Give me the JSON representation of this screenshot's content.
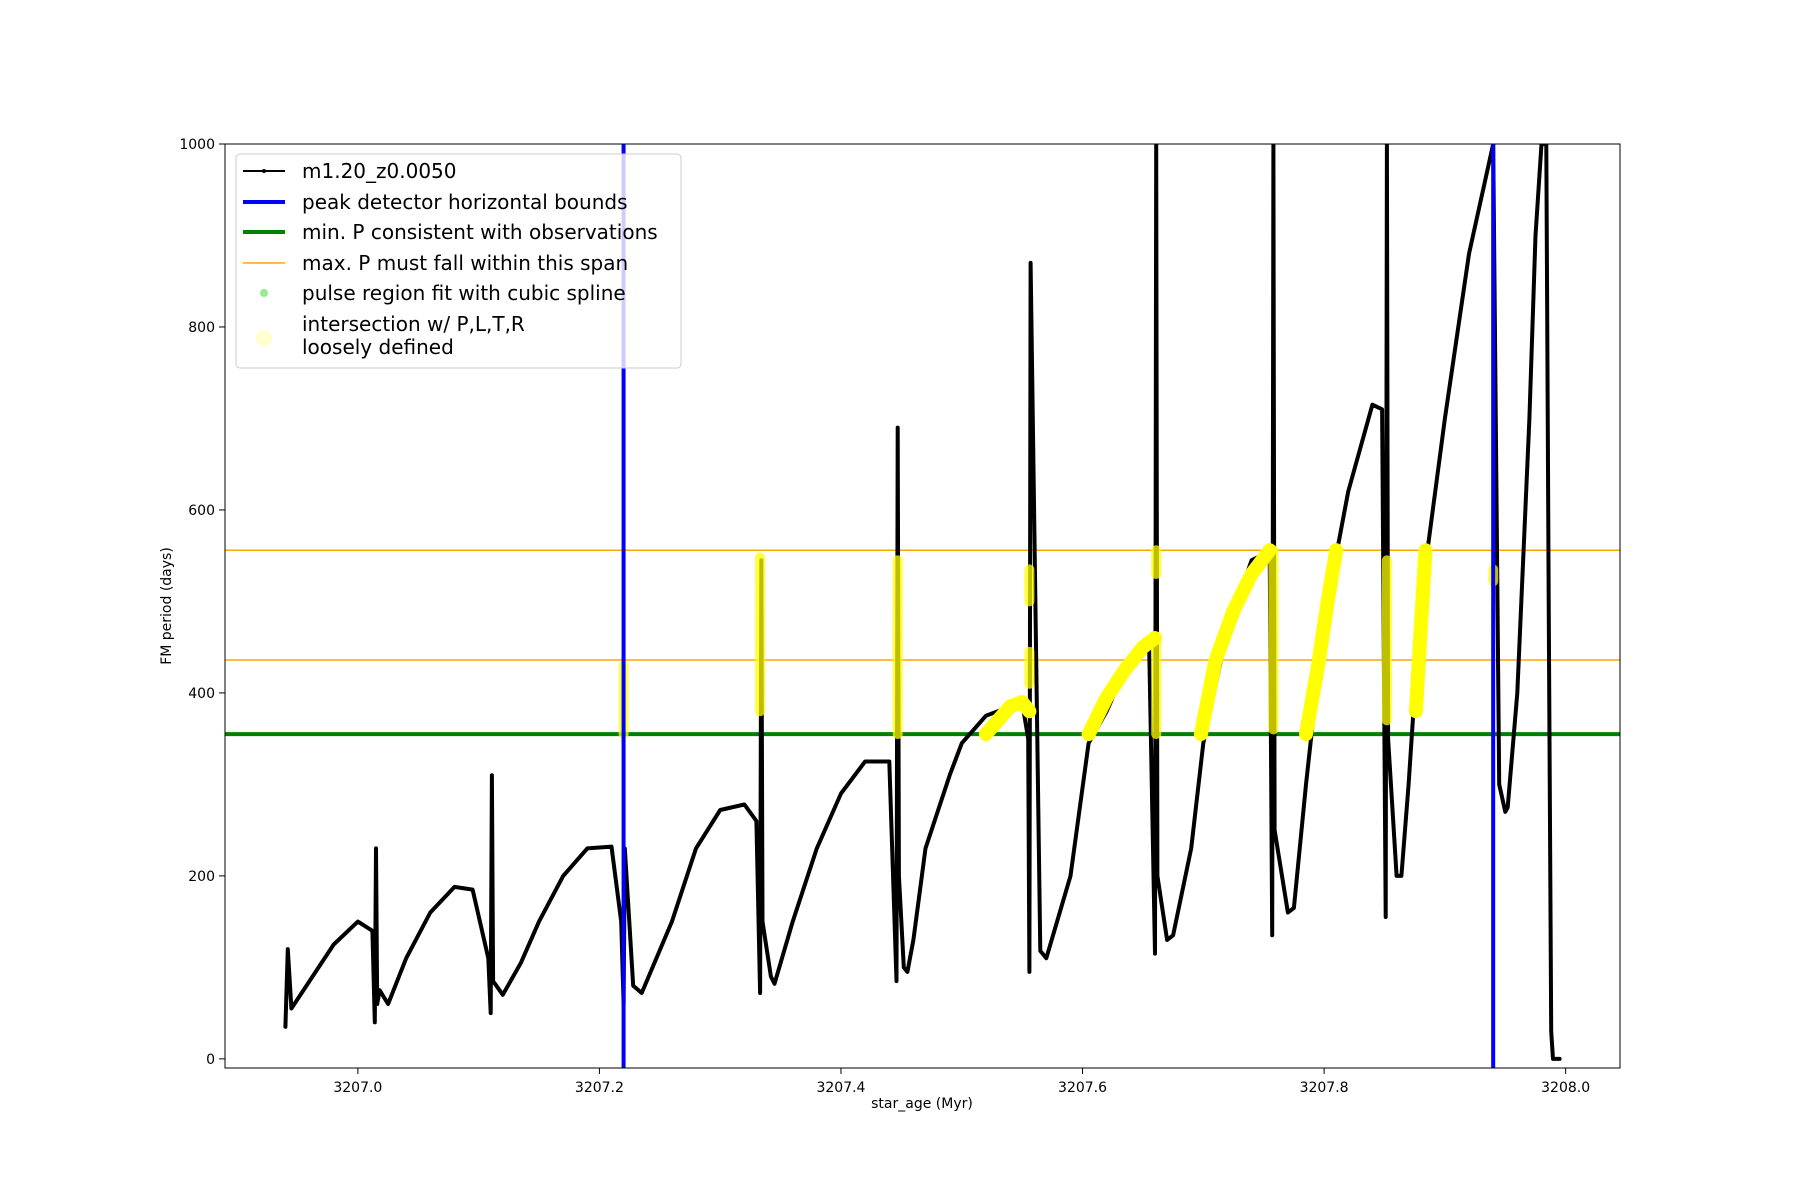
{
  "chart_data": {
    "type": "line",
    "xlabel": "star_age (Myr)",
    "ylabel": "FM period (days)",
    "xlim": [
      3206.89,
      3208.045
    ],
    "ylim": [
      -10,
      1000
    ],
    "xticks": [
      3207.0,
      3207.2,
      3207.4,
      3207.6,
      3207.8,
      3208.0
    ],
    "xtick_labels": [
      "3207.0",
      "3207.2",
      "3207.4",
      "3207.6",
      "3207.8",
      "3208.0"
    ],
    "yticks": [
      0,
      200,
      400,
      600,
      800,
      1000
    ],
    "ytick_labels": [
      "0",
      "200",
      "400",
      "600",
      "800",
      "1000"
    ],
    "legend_position": "top-left",
    "colors": {
      "track": "#000000",
      "bounds": "#0000ff",
      "min_p": "#007f00",
      "max_p": "#ffa500",
      "spline": "#90ee90",
      "intersection": "#ffff00"
    },
    "series": [
      {
        "name": "m1.20_z0.0050",
        "kind": "track",
        "x": [
          3206.94,
          3206.942,
          3206.945,
          3206.96,
          3206.98,
          3207.0,
          3207.012,
          3207.014,
          3207.015,
          3207.016,
          3207.018,
          3207.025,
          3207.04,
          3207.06,
          3207.08,
          3207.095,
          3207.108,
          3207.11,
          3207.111,
          3207.112,
          3207.12,
          3207.135,
          3207.15,
          3207.17,
          3207.19,
          3207.21,
          3207.218,
          3207.22,
          3207.221,
          3207.228,
          3207.235,
          3207.26,
          3207.28,
          3207.3,
          3207.32,
          3207.33,
          3207.333,
          3207.334,
          3207.335,
          3207.342,
          3207.345,
          3207.36,
          3207.38,
          3207.4,
          3207.42,
          3207.44,
          3207.446,
          3207.447,
          3207.448,
          3207.452,
          3207.455,
          3207.46,
          3207.47,
          3207.49,
          3207.5,
          3207.52,
          3207.55,
          3207.555,
          3207.556,
          3207.557,
          3207.565,
          3207.57,
          3207.59,
          3207.605,
          3207.62,
          3207.64,
          3207.655,
          3207.66,
          3207.661,
          3207.662,
          3207.67,
          3207.675,
          3207.69,
          3207.7,
          3207.72,
          3207.74,
          3207.755,
          3207.757,
          3207.758,
          3207.759,
          3207.77,
          3207.775,
          3207.785,
          3207.8,
          3207.82,
          3207.84,
          3207.848,
          3207.851,
          3207.852,
          3207.853,
          3207.86,
          3207.864,
          3207.87,
          3207.88,
          3207.9,
          3207.92,
          3207.94,
          3207.945,
          3207.95,
          3207.952,
          3207.96,
          3207.97,
          3207.975,
          3207.98,
          3207.984,
          3207.986,
          3207.988,
          3207.9895,
          3207.991,
          3207.995
        ],
        "y": [
          35,
          120,
          55,
          85,
          125,
          150,
          140,
          40,
          230,
          60,
          75,
          60,
          110,
          160,
          188,
          185,
          110,
          50,
          310,
          85,
          70,
          105,
          150,
          200,
          230,
          232,
          150,
          60,
          230,
          80,
          72,
          150,
          230,
          272,
          278,
          260,
          72,
          545,
          150,
          90,
          82,
          150,
          230,
          290,
          325,
          325,
          85,
          690,
          200,
          100,
          95,
          130,
          230,
          310,
          345,
          375,
          390,
          350,
          95,
          870,
          118,
          110,
          200,
          345,
          380,
          440,
          460,
          115,
          1000,
          200,
          130,
          135,
          230,
          345,
          470,
          545,
          555,
          135,
          1000,
          250,
          160,
          165,
          300,
          480,
          620,
          715,
          710,
          155,
          1000,
          350,
          200,
          200,
          300,
          500,
          700,
          880,
          1000,
          300,
          270,
          275,
          400,
          700,
          900,
          1000,
          1000,
          500,
          30,
          0,
          0,
          0
        ]
      }
    ],
    "hlines": [
      {
        "name": "min. P consistent with observations",
        "y": 355,
        "color": "#007f00"
      },
      {
        "name": "max. P must fall within this span",
        "y": 436,
        "color": "#ffa500"
      },
      {
        "y": 556,
        "color": "#ffa500"
      }
    ],
    "vlines": [
      {
        "name": "peak detector horizontal bounds",
        "x": 3207.22,
        "color": "#0000ff"
      },
      {
        "x": 3207.94,
        "color": "#0000ff"
      }
    ],
    "spline_name": "pulse region fit with cubic spline",
    "intersection": {
      "name": "intersection w/ P,L,T,R",
      "name_line2": "loosely defined",
      "segments": [
        {
          "x": [
            3207.22,
            3207.22
          ],
          "y": [
            355,
            430
          ]
        },
        {
          "x": [
            3207.333,
            3207.333
          ],
          "y": [
            380,
            548
          ]
        },
        {
          "x": [
            3207.447,
            3207.447
          ],
          "y": [
            355,
            545
          ]
        },
        {
          "x": [
            3207.52,
            3207.53,
            3207.54,
            3207.55,
            3207.556
          ],
          "y": [
            355,
            370,
            385,
            390,
            380
          ]
        },
        {
          "x": [
            3207.556,
            3207.556
          ],
          "y": [
            410,
            445
          ]
        },
        {
          "x": [
            3207.556,
            3207.556
          ],
          "y": [
            500,
            535
          ]
        },
        {
          "x": [
            3207.605,
            3207.62,
            3207.635,
            3207.65,
            3207.66
          ],
          "y": [
            355,
            395,
            425,
            450,
            460
          ]
        },
        {
          "x": [
            3207.661,
            3207.661
          ],
          "y": [
            355,
            460
          ]
        },
        {
          "x": [
            3207.661,
            3207.661
          ],
          "y": [
            530,
            556
          ]
        },
        {
          "x": [
            3207.698,
            3207.71,
            3207.725,
            3207.74,
            3207.755
          ],
          "y": [
            355,
            435,
            490,
            530,
            556
          ]
        },
        {
          "x": [
            3207.758,
            3207.758
          ],
          "y": [
            360,
            556
          ]
        },
        {
          "x": [
            3207.785,
            3207.795,
            3207.803,
            3207.81
          ],
          "y": [
            355,
            430,
            500,
            556
          ]
        },
        {
          "x": [
            3207.852,
            3207.852
          ],
          "y": [
            370,
            545
          ]
        },
        {
          "x": [
            3207.876,
            3207.88,
            3207.884
          ],
          "y": [
            380,
            470,
            556
          ]
        },
        {
          "x": [
            3207.94,
            3207.94
          ],
          "y": [
            522,
            535
          ]
        }
      ]
    }
  }
}
